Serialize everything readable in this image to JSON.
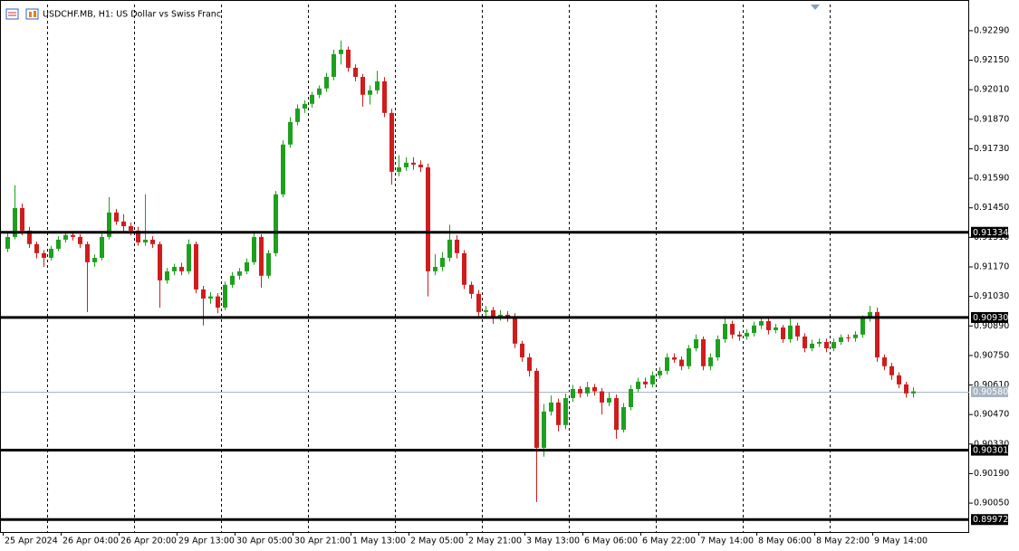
{
  "chart_data": {
    "type": "candlestick",
    "title": "USDCHF.MB, H1:  US Dollar vs Swiss Franc",
    "up_color": "#1ea01e",
    "down_color": "#d01c1c",
    "grid": true,
    "ylim": [
      0.89913,
      0.92414
    ],
    "yticks": [
      {
        "value": 0.9229,
        "label": "0.92290"
      },
      {
        "value": 0.9215,
        "label": "0.92150"
      },
      {
        "value": 0.9201,
        "label": "0.92010"
      },
      {
        "value": 0.9187,
        "label": "0.91870"
      },
      {
        "value": 0.9173,
        "label": "0.91730"
      },
      {
        "value": 0.9159,
        "label": "0.91590"
      },
      {
        "value": 0.9145,
        "label": "0.91450"
      },
      {
        "value": 0.9131,
        "label": "0.91310"
      },
      {
        "value": 0.9117,
        "label": "0.91170"
      },
      {
        "value": 0.9103,
        "label": "0.91030"
      },
      {
        "value": 0.9089,
        "label": "0.90890"
      },
      {
        "value": 0.9075,
        "label": "0.90750"
      },
      {
        "value": 0.9061,
        "label": "0.90610"
      },
      {
        "value": 0.9047,
        "label": "0.90470"
      },
      {
        "value": 0.9033,
        "label": "0.90330"
      },
      {
        "value": 0.9019,
        "label": "0.90190"
      },
      {
        "value": 0.9005,
        "label": "0.90050"
      }
    ],
    "levels": [
      {
        "value": 0.91334,
        "label": "0.91334"
      },
      {
        "value": 0.9093,
        "label": "0.90930"
      },
      {
        "value": 0.90301,
        "label": "0.90301"
      },
      {
        "value": 0.89972,
        "label": "0.89972"
      }
    ],
    "current_price": {
      "value": 0.9058,
      "label": "0.90580"
    },
    "categories": [
      "25 Apr 2024",
      null,
      null,
      null,
      null,
      null,
      null,
      null,
      "26 Apr 04:00",
      null,
      null,
      null,
      null,
      null,
      null,
      null,
      "26 Apr 20:00",
      null,
      null,
      null,
      null,
      null,
      null,
      null,
      "29 Apr 13:00",
      null,
      null,
      null,
      null,
      null,
      null,
      null,
      "30 Apr 05:00",
      null,
      null,
      null,
      null,
      null,
      null,
      null,
      "30 Apr 21:00",
      null,
      null,
      null,
      null,
      null,
      null,
      null,
      "1 May 13:00",
      null,
      null,
      null,
      null,
      null,
      null,
      null,
      "2 May 05:00",
      null,
      null,
      null,
      null,
      null,
      null,
      null,
      "2 May 21:00",
      null,
      null,
      null,
      null,
      null,
      null,
      null,
      "3 May 13:00",
      null,
      null,
      null,
      null,
      null,
      null,
      null,
      "6 May 06:00",
      null,
      null,
      null,
      null,
      null,
      null,
      null,
      "6 May 22:00",
      null,
      null,
      null,
      null,
      null,
      null,
      null,
      "7 May 14:00",
      null,
      null,
      null,
      null,
      null,
      null,
      null,
      "8 May 06:00",
      null,
      null,
      null,
      null,
      null,
      null,
      null,
      "8 May 22:00",
      null,
      null,
      null,
      null,
      null,
      null,
      null,
      "9 May 14:00",
      null,
      null,
      null,
      null,
      null
    ],
    "ohlc": [
      [
        0.91256,
        0.9133,
        0.9124,
        0.91312
      ],
      [
        0.91312,
        0.91557,
        0.913,
        0.91449
      ],
      [
        0.91449,
        0.9147,
        0.9132,
        0.91342
      ],
      [
        0.91342,
        0.9136,
        0.9126,
        0.91278
      ],
      [
        0.91278,
        0.9129,
        0.9121,
        0.91235
      ],
      [
        0.91235,
        0.9125,
        0.9117,
        0.91213
      ],
      [
        0.91213,
        0.9127,
        0.912,
        0.91256
      ],
      [
        0.91256,
        0.91315,
        0.91245,
        0.91299
      ],
      [
        0.91299,
        0.9134,
        0.91285,
        0.91321
      ],
      [
        0.91321,
        0.91335,
        0.91295,
        0.91312
      ],
      [
        0.91312,
        0.91325,
        0.9126,
        0.91278
      ],
      [
        0.91278,
        0.9129,
        0.90956,
        0.91192
      ],
      [
        0.91192,
        0.9123,
        0.9117,
        0.91213
      ],
      [
        0.91213,
        0.9133,
        0.912,
        0.91312
      ],
      [
        0.91312,
        0.91501,
        0.913,
        0.91428
      ],
      [
        0.91428,
        0.91445,
        0.9137,
        0.91385
      ],
      [
        0.91385,
        0.9142,
        0.9134,
        0.91363
      ],
      [
        0.91363,
        0.9138,
        0.9132,
        0.91342
      ],
      [
        0.91342,
        0.9136,
        0.9127,
        0.91286
      ],
      [
        0.91286,
        0.91514,
        0.9127,
        0.91299
      ],
      [
        0.91299,
        0.91315,
        0.9126,
        0.91278
      ],
      [
        0.91278,
        0.9129,
        0.90977,
        0.91106
      ],
      [
        0.91106,
        0.91165,
        0.9109,
        0.91149
      ],
      [
        0.91149,
        0.91185,
        0.9113,
        0.9117
      ],
      [
        0.9117,
        0.9119,
        0.9113,
        0.91149
      ],
      [
        0.91149,
        0.913,
        0.91135,
        0.91278
      ],
      [
        0.91278,
        0.9129,
        0.91045,
        0.91063
      ],
      [
        0.91063,
        0.9108,
        0.90892,
        0.9102
      ],
      [
        0.9102,
        0.9105,
        0.90995,
        0.9103
      ],
      [
        0.9103,
        0.91045,
        0.9095,
        0.90977
      ],
      [
        0.90977,
        0.911,
        0.90965,
        0.91085
      ],
      [
        0.91085,
        0.91145,
        0.9107,
        0.91128
      ],
      [
        0.91128,
        0.91165,
        0.9111,
        0.91149
      ],
      [
        0.91149,
        0.9121,
        0.91135,
        0.91192
      ],
      [
        0.91192,
        0.91335,
        0.9118,
        0.91312
      ],
      [
        0.91312,
        0.91325,
        0.91072,
        0.91128
      ],
      [
        0.91128,
        0.9125,
        0.91115,
        0.91235
      ],
      [
        0.91235,
        0.9153,
        0.9122,
        0.91514
      ],
      [
        0.91514,
        0.9177,
        0.915,
        0.9175
      ],
      [
        0.9175,
        0.9188,
        0.91735,
        0.91857
      ],
      [
        0.91857,
        0.9194,
        0.9184,
        0.91921
      ],
      [
        0.91921,
        0.9196,
        0.919,
        0.91943
      ],
      [
        0.91943,
        0.92,
        0.91925,
        0.91986
      ],
      [
        0.91986,
        0.9203,
        0.9197,
        0.92016
      ],
      [
        0.92016,
        0.9209,
        0.92,
        0.92071
      ],
      [
        0.92071,
        0.922,
        0.92055,
        0.92179
      ],
      [
        0.92179,
        0.92243,
        0.9213,
        0.922
      ],
      [
        0.922,
        0.92215,
        0.92095,
        0.92114
      ],
      [
        0.92114,
        0.9213,
        0.9205,
        0.92071
      ],
      [
        0.92071,
        0.92085,
        0.9193,
        0.91986
      ],
      [
        0.91986,
        0.9203,
        0.9194,
        0.92007
      ],
      [
        0.92007,
        0.921,
        0.9199,
        0.9205
      ],
      [
        0.9205,
        0.9207,
        0.9188,
        0.919
      ],
      [
        0.919,
        0.9192,
        0.9156,
        0.91621
      ],
      [
        0.91621,
        0.917,
        0.916,
        0.91642
      ],
      [
        0.91642,
        0.9169,
        0.91625,
        0.91664
      ],
      [
        0.91664,
        0.9169,
        0.9163,
        0.91655
      ],
      [
        0.91655,
        0.91675,
        0.9162,
        0.91642
      ],
      [
        0.91642,
        0.9166,
        0.9103,
        0.91149
      ],
      [
        0.91149,
        0.9123,
        0.9113,
        0.9117
      ],
      [
        0.9117,
        0.9124,
        0.9115,
        0.91213
      ],
      [
        0.91213,
        0.9137,
        0.91195,
        0.91299
      ],
      [
        0.91299,
        0.9132,
        0.9121,
        0.91235
      ],
      [
        0.91235,
        0.9125,
        0.91065,
        0.91085
      ],
      [
        0.91085,
        0.911,
        0.9102,
        0.91042
      ],
      [
        0.91042,
        0.9106,
        0.90935,
        0.90956
      ],
      [
        0.90956,
        0.90985,
        0.9093,
        0.90965
      ],
      [
        0.90965,
        0.9098,
        0.909,
        0.90934
      ],
      [
        0.90934,
        0.90965,
        0.90915,
        0.90943
      ],
      [
        0.90943,
        0.9096,
        0.9091,
        0.90934
      ],
      [
        0.90934,
        0.9095,
        0.90785,
        0.90806
      ],
      [
        0.90806,
        0.9082,
        0.9072,
        0.90741
      ],
      [
        0.90741,
        0.9076,
        0.9065,
        0.90677
      ],
      [
        0.90677,
        0.9069,
        0.90055,
        0.90312
      ],
      [
        0.90312,
        0.9052,
        0.9027,
        0.90484
      ],
      [
        0.90484,
        0.9056,
        0.90465,
        0.90527
      ],
      [
        0.90527,
        0.90545,
        0.9039,
        0.9042
      ],
      [
        0.9042,
        0.9057,
        0.904,
        0.90548
      ],
      [
        0.90548,
        0.9061,
        0.9053,
        0.90591
      ],
      [
        0.90591,
        0.90605,
        0.9055,
        0.9057
      ],
      [
        0.9057,
        0.90625,
        0.90555,
        0.906
      ],
      [
        0.906,
        0.90615,
        0.9056,
        0.9058
      ],
      [
        0.9058,
        0.90595,
        0.9047,
        0.90527
      ],
      [
        0.90527,
        0.90575,
        0.9051,
        0.90548
      ],
      [
        0.90548,
        0.90565,
        0.90355,
        0.90398
      ],
      [
        0.90398,
        0.90525,
        0.90385,
        0.90505
      ],
      [
        0.90505,
        0.9061,
        0.9049,
        0.90591
      ],
      [
        0.90591,
        0.90645,
        0.90575,
        0.90626
      ],
      [
        0.90626,
        0.90645,
        0.90595,
        0.90613
      ],
      [
        0.90613,
        0.90675,
        0.906,
        0.90656
      ],
      [
        0.90656,
        0.90695,
        0.9064,
        0.90677
      ],
      [
        0.90677,
        0.9076,
        0.9066,
        0.90741
      ],
      [
        0.90741,
        0.9076,
        0.90715,
        0.9073
      ],
      [
        0.9073,
        0.90745,
        0.9068,
        0.90699
      ],
      [
        0.90699,
        0.908,
        0.90685,
        0.90784
      ],
      [
        0.90784,
        0.9085,
        0.9077,
        0.90827
      ],
      [
        0.90827,
        0.9084,
        0.9068,
        0.90699
      ],
      [
        0.90699,
        0.9076,
        0.9068,
        0.90741
      ],
      [
        0.90741,
        0.90845,
        0.90725,
        0.90827
      ],
      [
        0.90827,
        0.90935,
        0.9081,
        0.909
      ],
      [
        0.909,
        0.90915,
        0.9083,
        0.90849
      ],
      [
        0.90849,
        0.90865,
        0.9082,
        0.9084
      ],
      [
        0.9084,
        0.90875,
        0.90825,
        0.90857
      ],
      [
        0.90857,
        0.9091,
        0.9084,
        0.90892
      ],
      [
        0.90892,
        0.9093,
        0.90875,
        0.90913
      ],
      [
        0.90913,
        0.90935,
        0.9085,
        0.9087
      ],
      [
        0.9087,
        0.909,
        0.90855,
        0.90883
      ],
      [
        0.90883,
        0.90895,
        0.9081,
        0.90827
      ],
      [
        0.90827,
        0.90935,
        0.9081,
        0.90892
      ],
      [
        0.90892,
        0.90905,
        0.9082,
        0.9084
      ],
      [
        0.9084,
        0.90855,
        0.90765,
        0.90784
      ],
      [
        0.90784,
        0.90825,
        0.9077,
        0.90806
      ],
      [
        0.90806,
        0.9083,
        0.9079,
        0.90814
      ],
      [
        0.90814,
        0.9083,
        0.90765,
        0.90784
      ],
      [
        0.90784,
        0.9083,
        0.9077,
        0.90814
      ],
      [
        0.90814,
        0.9085,
        0.908,
        0.90836
      ],
      [
        0.90836,
        0.9085,
        0.90815,
        0.90832
      ],
      [
        0.90832,
        0.90865,
        0.90815,
        0.90849
      ],
      [
        0.90849,
        0.9094,
        0.90835,
        0.90926
      ],
      [
        0.90926,
        0.90985,
        0.9091,
        0.90956
      ],
      [
        0.90956,
        0.90977,
        0.9072,
        0.90741
      ],
      [
        0.90741,
        0.90755,
        0.9068,
        0.90699
      ],
      [
        0.90699,
        0.90715,
        0.90635,
        0.90656
      ],
      [
        0.90656,
        0.9067,
        0.90595,
        0.90613
      ],
      [
        0.90613,
        0.90625,
        0.9055,
        0.9057
      ],
      [
        0.9057,
        0.906,
        0.9055,
        0.9058
      ]
    ]
  }
}
